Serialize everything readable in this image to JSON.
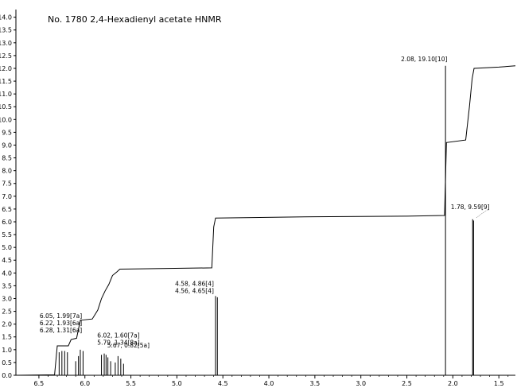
{
  "chart_data": {
    "type": "line",
    "title": "No. 1780 2,4-Hexadienyl acetate HNMR",
    "x_axis": {
      "range": [
        6.75,
        1.32
      ],
      "ticks": [
        "6.5",
        "6.0",
        "5.5",
        "5.0",
        "4.5",
        "4.0",
        "3.5",
        "3.0",
        "2.5",
        "2.0",
        "1.5"
      ],
      "reversed": true
    },
    "y_axis": {
      "range": [
        0,
        14.3
      ],
      "ticks": [
        "0.0",
        "0.5",
        "1.0",
        "1.5",
        "2.0",
        "2.5",
        "3.0",
        "3.5",
        "4.0",
        "4.5",
        "5.0",
        "5.5",
        "6.0",
        "6.5",
        "7.0",
        "7.5",
        "8.0",
        "8.5",
        "9.0",
        "9.5",
        "10.0",
        "10.5",
        "11.0",
        "11.5",
        "12.0",
        "12.5",
        "13.0",
        "13.5",
        "14.0"
      ]
    },
    "grid": false,
    "peaks": [
      {
        "ppm": 6.28,
        "height": 0.9
      },
      {
        "ppm": 6.25,
        "height": 0.95
      },
      {
        "ppm": 6.22,
        "height": 0.95
      },
      {
        "ppm": 6.19,
        "height": 0.9
      },
      {
        "ppm": 6.1,
        "height": 0.55
      },
      {
        "ppm": 6.07,
        "height": 0.75
      },
      {
        "ppm": 6.05,
        "height": 1.0
      },
      {
        "ppm": 6.02,
        "height": 0.95
      },
      {
        "ppm": 5.82,
        "height": 0.8
      },
      {
        "ppm": 5.79,
        "height": 0.85
      },
      {
        "ppm": 5.77,
        "height": 0.8
      },
      {
        "ppm": 5.75,
        "height": 0.7
      },
      {
        "ppm": 5.72,
        "height": 0.55
      },
      {
        "ppm": 5.67,
        "height": 0.5
      },
      {
        "ppm": 5.64,
        "height": 0.75
      },
      {
        "ppm": 5.61,
        "height": 0.65
      },
      {
        "ppm": 5.58,
        "height": 0.45
      },
      {
        "ppm": 4.58,
        "height": 3.1
      },
      {
        "ppm": 4.56,
        "height": 3.05
      },
      {
        "ppm": 2.08,
        "height": 12.1
      },
      {
        "ppm": 1.785,
        "height": 6.1
      },
      {
        "ppm": 1.775,
        "height": 6.05
      }
    ],
    "integral": [
      [
        6.75,
        0.0
      ],
      [
        6.33,
        0.02
      ],
      [
        6.3,
        1.15
      ],
      [
        6.18,
        1.15
      ],
      [
        6.15,
        1.4
      ],
      [
        6.09,
        1.45
      ],
      [
        6.05,
        2.15
      ],
      [
        5.92,
        2.2
      ],
      [
        5.86,
        2.55
      ],
      [
        5.82,
        3.0
      ],
      [
        5.78,
        3.3
      ],
      [
        5.74,
        3.55
      ],
      [
        5.7,
        3.9
      ],
      [
        5.65,
        4.05
      ],
      [
        5.62,
        4.15
      ],
      [
        4.62,
        4.2
      ],
      [
        4.6,
        5.8
      ],
      [
        4.58,
        6.15
      ],
      [
        3.5,
        6.2
      ],
      [
        2.5,
        6.22
      ],
      [
        2.09,
        6.25
      ],
      [
        2.07,
        9.1
      ],
      [
        1.86,
        9.2
      ],
      [
        1.82,
        10.5
      ],
      [
        1.79,
        11.6
      ],
      [
        1.77,
        12.0
      ],
      [
        1.5,
        12.05
      ],
      [
        1.32,
        12.1
      ]
    ],
    "annotations": [
      {
        "lines": [
          "2.08, 19.10[10]"
        ],
        "ppm": 2.08,
        "y": 12.1,
        "anchor": "left"
      },
      {
        "lines": [
          "1.78, 9.59[9]"
        ],
        "ppm": 1.78,
        "y": 6.1,
        "anchor": "left"
      },
      {
        "lines": [
          "4.58, 4.86[4]",
          "4.56, 4.65[4]"
        ],
        "ppm": 4.57,
        "y": 3.1,
        "anchor": "left"
      },
      {
        "lines": [
          "6.05, 1.99[7a]",
          "6.22, 1.93[6a]",
          "6.28, 1.31[6a]"
        ],
        "ppm": 6.25,
        "y": 1.0,
        "anchor": "left"
      },
      {
        "lines": [
          "6.02, 1.60[7a]",
          "5.79, 1.34[8a]"
        ],
        "ppm": 5.9,
        "y": 0.95,
        "anchor": "left"
      },
      {
        "lines": [
          "5.67, 0.82[5a]"
        ],
        "ppm": 5.62,
        "y": 0.65,
        "anchor": "left"
      }
    ]
  }
}
